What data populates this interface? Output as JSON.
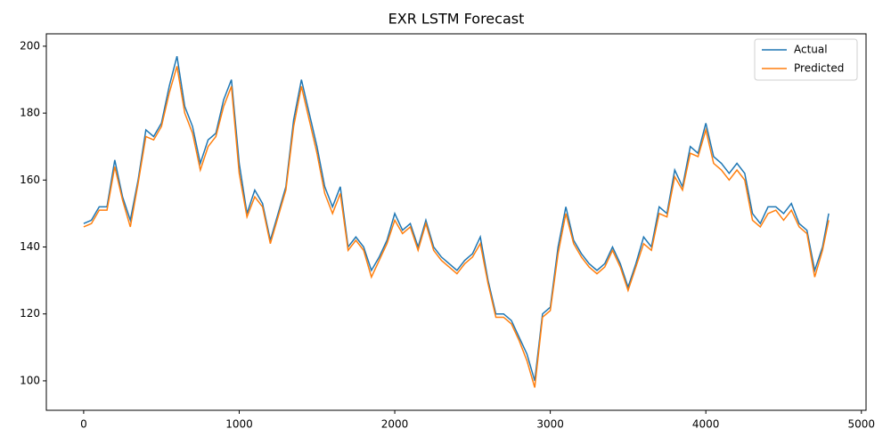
{
  "chart_data": {
    "type": "line",
    "title": "EXR LSTM Forecast",
    "x": [
      0,
      50,
      100,
      150,
      200,
      250,
      300,
      350,
      400,
      450,
      500,
      550,
      600,
      650,
      700,
      750,
      800,
      850,
      900,
      950,
      1000,
      1050,
      1100,
      1150,
      1200,
      1250,
      1300,
      1350,
      1400,
      1450,
      1500,
      1550,
      1600,
      1650,
      1700,
      1750,
      1800,
      1850,
      1900,
      1950,
      2000,
      2050,
      2100,
      2150,
      2200,
      2250,
      2300,
      2350,
      2400,
      2450,
      2500,
      2550,
      2600,
      2650,
      2700,
      2750,
      2800,
      2850,
      2900,
      2950,
      3000,
      3050,
      3100,
      3150,
      3200,
      3250,
      3300,
      3350,
      3400,
      3450,
      3500,
      3550,
      3600,
      3650,
      3700,
      3750,
      3800,
      3850,
      3900,
      3950,
      4000,
      4050,
      4100,
      4150,
      4200,
      4250,
      4300,
      4350,
      4400,
      4450,
      4500,
      4550,
      4600,
      4650,
      4700,
      4750,
      4790
    ],
    "series": [
      {
        "name": "Actual",
        "color": "#1f77b4",
        "values": [
          147,
          148,
          152,
          152,
          166,
          155,
          148,
          160,
          175,
          173,
          177,
          188,
          197,
          182,
          176,
          165,
          172,
          174,
          184,
          190,
          165,
          150,
          157,
          153,
          142,
          150,
          158,
          178,
          190,
          180,
          170,
          158,
          152,
          158,
          140,
          143,
          140,
          133,
          137,
          142,
          150,
          145,
          147,
          140,
          148,
          140,
          137,
          135,
          133,
          136,
          138,
          143,
          130,
          120,
          120,
          118,
          113,
          108,
          100,
          120,
          122,
          140,
          152,
          142,
          138,
          135,
          133,
          135,
          140,
          135,
          128,
          135,
          143,
          140,
          152,
          150,
          163,
          158,
          170,
          168,
          177,
          167,
          165,
          162,
          165,
          162,
          150,
          147,
          152,
          152,
          150,
          153,
          147,
          145,
          133,
          140,
          150
        ]
      },
      {
        "name": "Predicted",
        "color": "#ff7f0e",
        "values": [
          146,
          147,
          151,
          151,
          164,
          154,
          146,
          159,
          173,
          172,
          176,
          186,
          194,
          180,
          174,
          163,
          170,
          173,
          182,
          188,
          162,
          149,
          155,
          152,
          141,
          149,
          157,
          176,
          188,
          178,
          168,
          156,
          150,
          156,
          139,
          142,
          139,
          131,
          136,
          141,
          148,
          144,
          146,
          139,
          147,
          139,
          136,
          134,
          132,
          135,
          137,
          141,
          129,
          119,
          119,
          117,
          112,
          106,
          98,
          119,
          121,
          138,
          150,
          141,
          137,
          134,
          132,
          134,
          139,
          134,
          127,
          134,
          141,
          139,
          150,
          149,
          161,
          157,
          168,
          167,
          175,
          165,
          163,
          160,
          163,
          160,
          148,
          146,
          150,
          151,
          148,
          151,
          146,
          144,
          131,
          139,
          148
        ]
      }
    ],
    "xlim": [
      -240,
      5030
    ],
    "ylim": [
      91.2,
      203.7
    ],
    "xticks": [
      0,
      1000,
      2000,
      3000,
      4000,
      5000
    ],
    "yticks": [
      100,
      120,
      140,
      160,
      180,
      200
    ],
    "legend": "upper right"
  }
}
